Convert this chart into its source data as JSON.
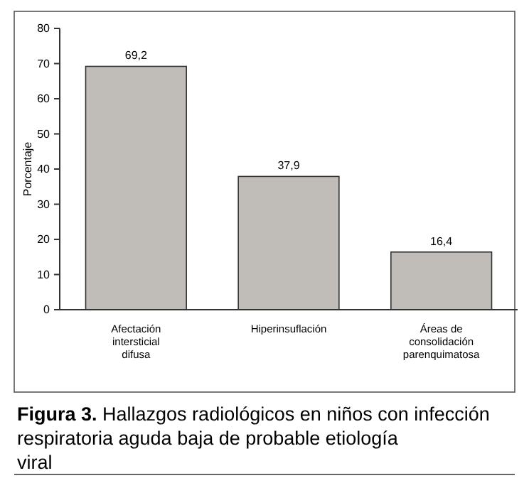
{
  "chart_data": {
    "type": "bar",
    "title": "Figura 3. Hallazgos radiológicos en niños con infección respiratoria aguda baja de probable etiología viral",
    "ylabel": "Porcentaje",
    "categories": [
      "Afectación intersticial difusa",
      "Hiperinsuflación",
      "Áreas de consolidación parenquimatosa"
    ],
    "values": [
      69.2,
      37.9,
      16.4
    ],
    "value_labels": [
      "69,2",
      "37,9",
      "16,4"
    ],
    "color": "#c0bdb8",
    "ylim": [
      0,
      80
    ],
    "yticks": [
      0,
      10,
      20,
      30,
      40,
      50,
      60,
      70,
      80
    ],
    "grid": false
  }
}
